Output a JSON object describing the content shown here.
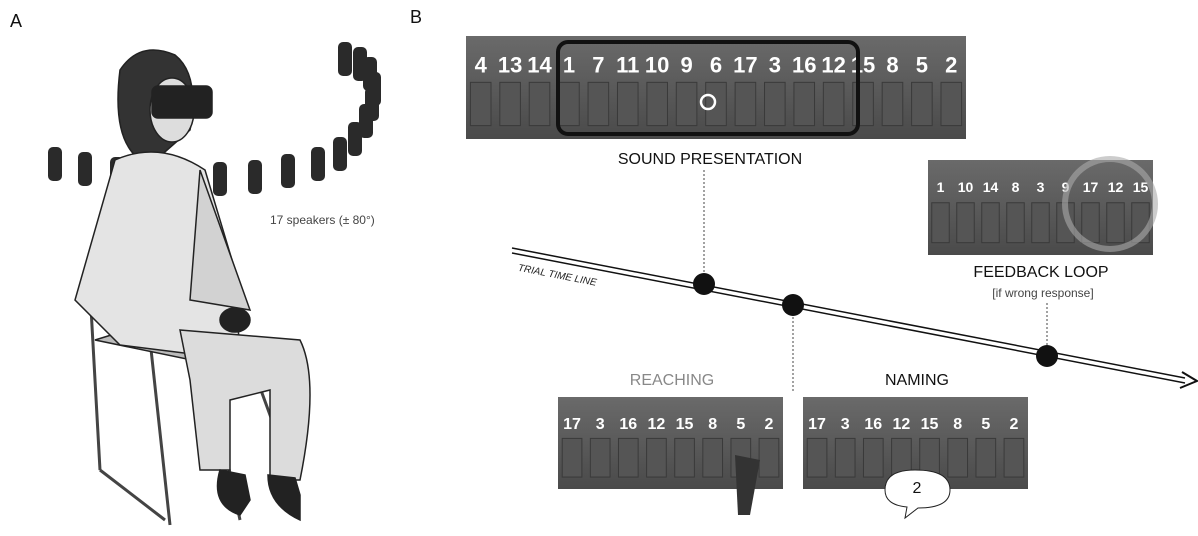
{
  "panel_a": {
    "letter": "A",
    "caption": "17 speakers (± 80°)"
  },
  "panel_b": {
    "letter": "B",
    "timeline_label": "TRIAL TIME LINE",
    "sound_presentation": {
      "title": "SOUND PRESENTATION",
      "speakers": [
        "4",
        "13",
        "14",
        "1",
        "7",
        "11",
        "10",
        "9",
        "6",
        "17",
        "3",
        "16",
        "12",
        "15",
        "8",
        "5",
        "2"
      ]
    },
    "feedback_loop": {
      "title": "FEEDBACK LOOP",
      "note": "[if wrong response]",
      "speakers": [
        "1",
        "10",
        "14",
        "8",
        "3",
        "9",
        "17",
        "12",
        "15"
      ]
    },
    "reaching": {
      "title": "REACHING",
      "speakers": [
        "17",
        "3",
        "16",
        "12",
        "15",
        "8",
        "5",
        "2"
      ]
    },
    "naming": {
      "title": "NAMING",
      "speakers": [
        "17",
        "3",
        "16",
        "12",
        "15",
        "8",
        "5",
        "2"
      ],
      "response": "2"
    }
  }
}
